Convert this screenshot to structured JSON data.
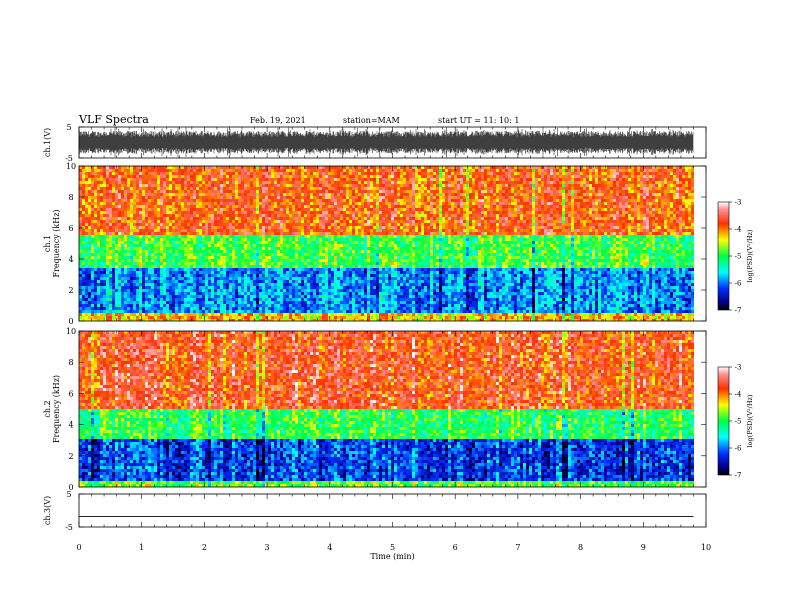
{
  "header": {
    "title": "VLF Spectra",
    "date": "Feb. 19, 2021",
    "station": "station=MAM",
    "start": "start  UT =   11: 10: 1"
  },
  "chart_data": [
    {
      "type": "line",
      "panel": "waveform-top",
      "ylabel": "ch.1(V)",
      "ylim": [
        -5,
        5
      ],
      "yticks": [
        "5",
        "-5"
      ],
      "xlim": [
        0,
        10
      ],
      "description_values": {
        "amplitude_min": -5,
        "amplitude_max": 5
      }
    },
    {
      "type": "heatmap",
      "panel": "spectrogram-ch1",
      "ylabel": [
        "ch.1",
        "Frequency (kHz)"
      ],
      "ylim": [
        0,
        10
      ],
      "yticks": [
        "0",
        "2",
        "4",
        "6",
        "8",
        "10"
      ],
      "xlim": [
        0,
        10
      ],
      "colorbar": {
        "label": "log(PSD)(V²/Hz)",
        "ticks": [
          "-3",
          "-4",
          "-5",
          "-6",
          "-7"
        ],
        "range": [
          -7,
          -3
        ]
      },
      "bands": [
        {
          "freq": [
            0,
            0.6
          ],
          "level": -4.2
        },
        {
          "freq": [
            0.6,
            3.5
          ],
          "level": -5.9
        },
        {
          "freq": [
            3.5,
            5.5
          ],
          "level": -4.9
        },
        {
          "freq": [
            5.5,
            10
          ],
          "level": -3.8
        }
      ]
    },
    {
      "type": "heatmap",
      "panel": "spectrogram-ch2",
      "ylabel": [
        "ch.2",
        "Frequency (kHz)"
      ],
      "ylim": [
        0,
        10
      ],
      "yticks": [
        "0",
        "2",
        "4",
        "6",
        "8",
        "10"
      ],
      "xlim": [
        0,
        10
      ],
      "colorbar": {
        "label": "log(PSD)(V²/Hz)",
        "ticks": [
          "-3",
          "-4",
          "-5",
          "-6",
          "-7"
        ],
        "range": [
          -7,
          -3
        ]
      },
      "bands": [
        {
          "freq": [
            0,
            0.4
          ],
          "level": -4.8
        },
        {
          "freq": [
            0.4,
            3.0
          ],
          "level": -6.2
        },
        {
          "freq": [
            3.0,
            5.0
          ],
          "level": -5.0
        },
        {
          "freq": [
            5.0,
            10
          ],
          "level": -3.7
        }
      ]
    },
    {
      "type": "line",
      "panel": "waveform-bottom",
      "ylabel": "ch.3(V)",
      "ylim": [
        -5,
        5
      ],
      "yticks": [
        "5",
        "-5"
      ],
      "xlim": [
        0,
        10
      ],
      "x": [
        0,
        9.8
      ],
      "y": [
        -1.8,
        -1.8
      ]
    }
  ],
  "xaxis": {
    "label": "Time (min)",
    "ticks": [
      "0",
      "1",
      "2",
      "3",
      "4",
      "5",
      "6",
      "7",
      "8",
      "9",
      "10"
    ]
  }
}
